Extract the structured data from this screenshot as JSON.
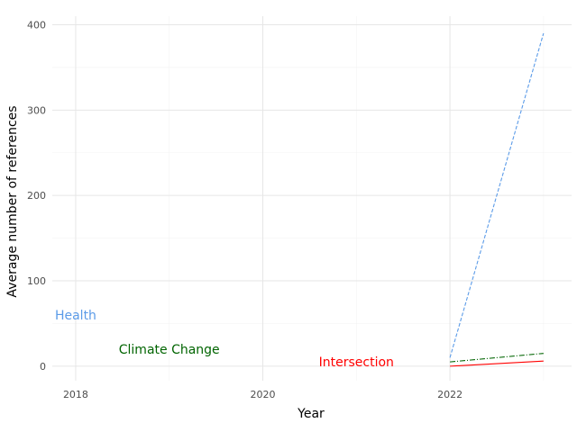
{
  "chart_data": {
    "type": "line",
    "title": "",
    "xlabel": "Year",
    "ylabel": "Average number of references",
    "xlim": [
      2017.75,
      2023.3
    ],
    "ylim": [
      -17,
      410
    ],
    "x_ticks": [
      2018,
      2020,
      2022
    ],
    "y_ticks": [
      0,
      100,
      200,
      300,
      400
    ],
    "grid": true,
    "legend": "none",
    "series": [
      {
        "name": "Health",
        "color": "#5B9BE8",
        "dash": "dashed",
        "x": [
          2022,
          2023
        ],
        "y": [
          10,
          390
        ]
      },
      {
        "name": "Climate Change",
        "color": "#006400",
        "dash": "dashdot",
        "x": [
          2022,
          2023
        ],
        "y": [
          5,
          15
        ]
      },
      {
        "name": "Intersection",
        "color": "#FF0000",
        "dash": "solid",
        "x": [
          2022,
          2023
        ],
        "y": [
          0,
          6
        ]
      }
    ],
    "labels": [
      {
        "series": 0,
        "text": "Health",
        "x": 2018,
        "y": 60
      },
      {
        "series": 1,
        "text": "Climate Change",
        "x": 2019,
        "y": 20
      },
      {
        "series": 2,
        "text": "Intersection",
        "x": 2021,
        "y": 5
      }
    ]
  }
}
